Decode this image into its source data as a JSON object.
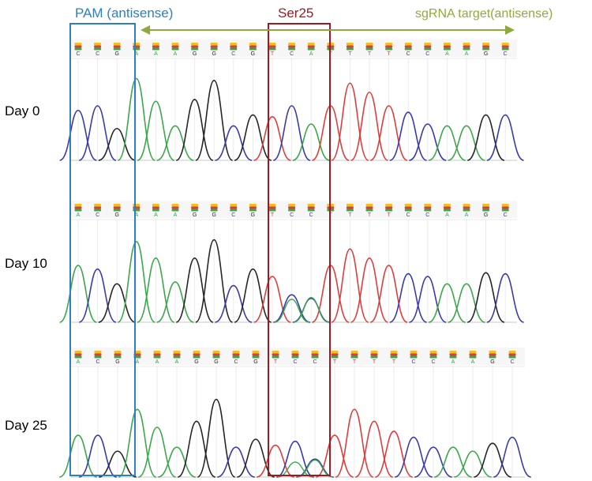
{
  "annotations": {
    "pam": {
      "label": "PAM (antisense)",
      "color": "#2e7fc0"
    },
    "ser": {
      "label": "Ser25",
      "color": "#a01820"
    },
    "sgrna": {
      "label": "sgRNA target(antisense)",
      "color": "#8faa3c"
    }
  },
  "base_colors": {
    "A": "#3aa84a",
    "C": "#3a3ab0",
    "G": "#262626",
    "T": "#e03c3c"
  },
  "tracks": [
    {
      "day": "Day 0",
      "bases": [
        "C",
        "C",
        "G",
        "A",
        "A",
        "A",
        "G",
        "G",
        "C",
        "G",
        "T",
        "C",
        "A",
        "T",
        "T",
        "T",
        "T",
        "C",
        "C",
        "A",
        "A",
        "G",
        "C"
      ],
      "peaks": [
        {
          "base": "C",
          "h": 0.55
        },
        {
          "base": "C",
          "h": 0.6
        },
        {
          "base": "G",
          "h": 0.35
        },
        {
          "base": "A",
          "h": 0.9
        },
        {
          "base": "A",
          "h": 0.65
        },
        {
          "base": "A",
          "h": 0.38
        },
        {
          "base": "G",
          "h": 0.67
        },
        {
          "base": "G",
          "h": 0.88
        },
        {
          "base": "C",
          "h": 0.38
        },
        {
          "base": "G",
          "h": 0.5
        },
        {
          "base": "T",
          "h": 0.48
        },
        {
          "base": "C",
          "h": 0.6
        },
        {
          "base": "A",
          "h": 0.4
        },
        {
          "base": "T",
          "h": 0.6
        },
        {
          "base": "T",
          "h": 0.85
        },
        {
          "base": "T",
          "h": 0.75
        },
        {
          "base": "T",
          "h": 0.6
        },
        {
          "base": "C",
          "h": 0.53
        },
        {
          "base": "C",
          "h": 0.4
        },
        {
          "base": "A",
          "h": 0.38
        },
        {
          "base": "A",
          "h": 0.38
        },
        {
          "base": "G",
          "h": 0.5
        },
        {
          "base": "C",
          "h": 0.5
        }
      ],
      "minor": []
    },
    {
      "day": "Day 10",
      "bases": [
        "A",
        "C",
        "G",
        "A",
        "A",
        "A",
        "G",
        "G",
        "C",
        "G",
        "T",
        "C",
        "C",
        "T",
        "T",
        "T",
        "T",
        "C",
        "C",
        "A",
        "A",
        "G",
        "C"
      ],
      "peaks": [
        {
          "base": "A",
          "h": 0.62
        },
        {
          "base": "C",
          "h": 0.58
        },
        {
          "base": "G",
          "h": 0.42
        },
        {
          "base": "A",
          "h": 0.88
        },
        {
          "base": "A",
          "h": 0.7
        },
        {
          "base": "A",
          "h": 0.44
        },
        {
          "base": "G",
          "h": 0.7
        },
        {
          "base": "G",
          "h": 0.9
        },
        {
          "base": "C",
          "h": 0.4
        },
        {
          "base": "G",
          "h": 0.58
        },
        {
          "base": "T",
          "h": 0.5
        },
        {
          "base": "C",
          "h": 0.3
        },
        {
          "base": "C",
          "h": 0.26
        },
        {
          "base": "T",
          "h": 0.62
        },
        {
          "base": "T",
          "h": 0.8
        },
        {
          "base": "T",
          "h": 0.7
        },
        {
          "base": "T",
          "h": 0.62
        },
        {
          "base": "C",
          "h": 0.53
        },
        {
          "base": "C",
          "h": 0.5
        },
        {
          "base": "A",
          "h": 0.42
        },
        {
          "base": "A",
          "h": 0.42
        },
        {
          "base": "G",
          "h": 0.54
        },
        {
          "base": "C",
          "h": 0.53
        }
      ],
      "minor": [
        {
          "pos": 11,
          "base": "A",
          "h": 0.25
        },
        {
          "pos": 12,
          "base": "A",
          "h": 0.27
        }
      ]
    },
    {
      "day": "Day 25",
      "bases": [
        "A",
        "C",
        "G",
        "A",
        "A",
        "A",
        "G",
        "G",
        "C",
        "G",
        "T",
        "C",
        "C",
        "T",
        "T",
        "T",
        "T",
        "C",
        "C",
        "A",
        "A",
        "G",
        "C"
      ],
      "peaks": [
        {
          "base": "A",
          "h": 0.42
        },
        {
          "base": "C",
          "h": 0.42
        },
        {
          "base": "G",
          "h": 0.26
        },
        {
          "base": "A",
          "h": 0.68
        },
        {
          "base": "A",
          "h": 0.5
        },
        {
          "base": "A",
          "h": 0.3
        },
        {
          "base": "G",
          "h": 0.56
        },
        {
          "base": "G",
          "h": 0.78
        },
        {
          "base": "C",
          "h": 0.3
        },
        {
          "base": "G",
          "h": 0.38
        },
        {
          "base": "T",
          "h": 0.32
        },
        {
          "base": "C",
          "h": 0.36
        },
        {
          "base": "C",
          "h": 0.18
        },
        {
          "base": "T",
          "h": 0.42
        },
        {
          "base": "T",
          "h": 0.68
        },
        {
          "base": "T",
          "h": 0.56
        },
        {
          "base": "T",
          "h": 0.46
        },
        {
          "base": "C",
          "h": 0.4
        },
        {
          "base": "C",
          "h": 0.3
        },
        {
          "base": "A",
          "h": 0.3
        },
        {
          "base": "A",
          "h": 0.26
        },
        {
          "base": "G",
          "h": 0.34
        },
        {
          "base": "C",
          "h": 0.4
        }
      ],
      "minor": [
        {
          "pos": 11,
          "base": "A",
          "h": 0.15
        },
        {
          "pos": 12,
          "base": "A",
          "h": 0.17
        }
      ]
    }
  ]
}
